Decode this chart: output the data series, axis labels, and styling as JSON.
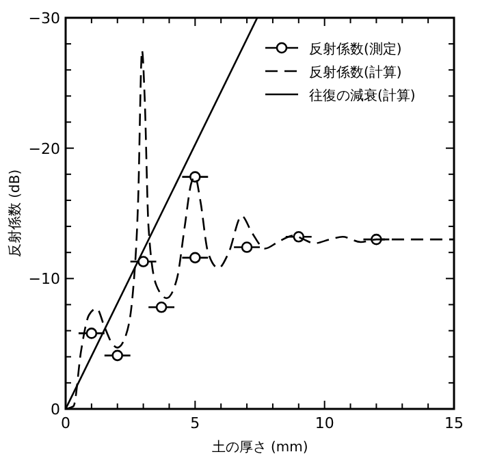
{
  "chart_data": {
    "type": "line",
    "xlabel": "土の厚さ (mm)",
    "ylabel": "反射係数 (dB)",
    "xlim": [
      0,
      15
    ],
    "xticks": [
      0,
      {
        "value": 1,
        "label": null
      },
      {
        "value": 2,
        "label": null
      },
      {
        "value": 3,
        "label": null
      },
      {
        "value": 4,
        "label": null
      },
      5,
      {
        "value": 6,
        "label": null
      },
      {
        "value": 7,
        "label": null
      },
      {
        "value": 8,
        "label": null
      },
      {
        "value": 9,
        "label": null
      },
      10,
      {
        "value": 11,
        "label": null
      },
      {
        "value": 12,
        "label": null
      },
      {
        "value": 13,
        "label": null
      },
      {
        "value": 14,
        "label": null
      },
      15
    ],
    "ylim": [
      0,
      -30
    ],
    "yticks": [
      0,
      {
        "value": -2,
        "label": null
      },
      {
        "value": -4,
        "label": null
      },
      {
        "value": -6,
        "label": null
      },
      {
        "value": -8,
        "label": null
      },
      {
        "value": -10,
        "label": "−10"
      },
      {
        "value": -12,
        "label": null
      },
      {
        "value": -14,
        "label": null
      },
      {
        "value": -16,
        "label": null
      },
      {
        "value": -18,
        "label": null
      },
      {
        "value": -20,
        "label": "−20"
      },
      {
        "value": -22,
        "label": null
      },
      {
        "value": -24,
        "label": null
      },
      {
        "value": -26,
        "label": null
      },
      {
        "value": -28,
        "label": null
      },
      {
        "value": -30,
        "label": "−30"
      }
    ],
    "grid": false,
    "legend": "top right",
    "series": [
      {
        "name": "反射係数(測定)",
        "type": "scatter",
        "marker": "circle",
        "color": "#000000",
        "x": [
          1,
          2,
          3,
          3.7,
          5,
          5,
          7,
          9,
          12
        ],
        "values": [
          -5.8,
          -4.1,
          -11.3,
          -7.8,
          -17.8,
          -11.6,
          -12.4,
          -13.2,
          -13.0
        ],
        "xerrors": [
          0.5,
          0.5,
          0.5,
          0.5,
          0.5,
          0.5,
          0.5,
          0.5,
          0.5
        ]
      },
      {
        "name": "反射係数(計算)",
        "line_style": "dashed",
        "marker": "none",
        "color": "#000000",
        "x": [
          0,
          0.3,
          0.6,
          0.9,
          1.2,
          1.5,
          1.8,
          2.0,
          2.3,
          2.6,
          2.8,
          2.95,
          3.05,
          3.2,
          3.5,
          3.9,
          4.3,
          4.6,
          4.85,
          5.0,
          5.2,
          5.5,
          5.9,
          6.3,
          6.8,
          7.2,
          7.7,
          8.2,
          8.8,
          9.2,
          9.6,
          10.2,
          10.7,
          11.4,
          12,
          13,
          14,
          15
        ],
        "values": [
          0,
          -0.2,
          -4.5,
          -7.2,
          -7.7,
          -6.3,
          -5.0,
          -4.7,
          -5.5,
          -9,
          -16,
          -27.5,
          -24,
          -14,
          -9.5,
          -8.5,
          -10,
          -14,
          -17.3,
          -17.8,
          -16,
          -12,
          -10.8,
          -12,
          -14.8,
          -13.5,
          -12.3,
          -12.8,
          -13.3,
          -13.0,
          -12.7,
          -13.0,
          -13.2,
          -12.8,
          -13.0,
          -13.0,
          -13.0,
          -13.0
        ]
      },
      {
        "name": "往復の減衰(計算)",
        "line_style": "solid",
        "marker": "none",
        "color": "#000000",
        "x": [
          0,
          7.4
        ],
        "values": [
          0,
          -30
        ]
      }
    ]
  }
}
